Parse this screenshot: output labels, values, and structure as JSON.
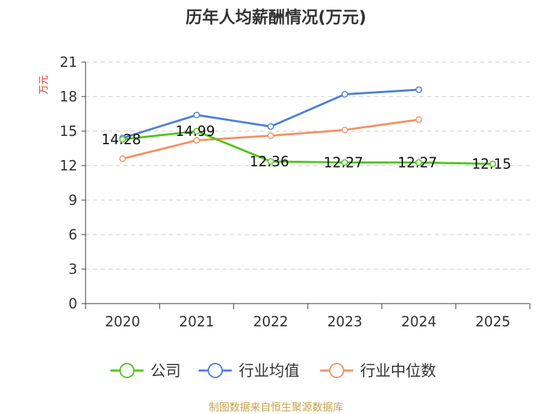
{
  "chart_data": {
    "type": "line",
    "title": "历年人均薪酬情况(万元)",
    "xlabel": "",
    "ylabel": "万元",
    "categories": [
      "2020",
      "2021",
      "2022",
      "2023",
      "2024",
      "2025"
    ],
    "ylim": [
      0,
      21
    ],
    "yticks": [
      0,
      3,
      6,
      9,
      12,
      15,
      18,
      21
    ],
    "grid": true,
    "legend_position": "bottom",
    "series": [
      {
        "name": "公司",
        "color": "#52c41a",
        "values": [
          14.28,
          14.99,
          12.36,
          12.27,
          12.27,
          12.15
        ],
        "labels": [
          "14.28",
          "14.99",
          "12.36",
          "12.27",
          "12.27",
          "12.15"
        ]
      },
      {
        "name": "行业均值",
        "color": "#4e7fd8",
        "values": [
          14.4,
          16.4,
          15.4,
          18.2,
          18.6,
          null
        ]
      },
      {
        "name": "行业中位数",
        "color": "#f59160",
        "values": [
          12.6,
          14.2,
          14.6,
          15.1,
          16.0,
          null
        ]
      }
    ]
  },
  "source": {
    "text": "制图数据来自恒生聚源数据库",
    "color": "#c8a24a"
  },
  "ylabel_color": "#e03c3c"
}
